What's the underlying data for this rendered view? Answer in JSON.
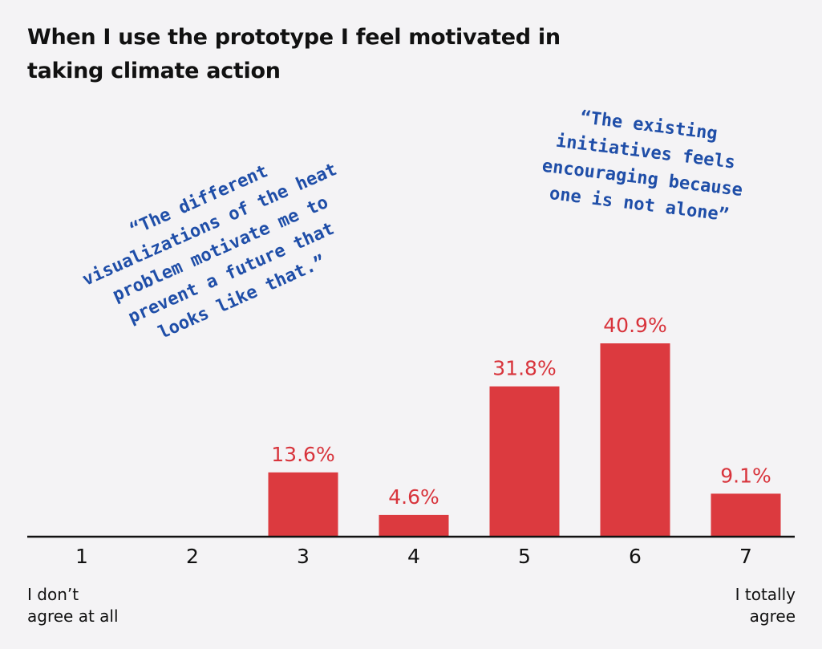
{
  "title": "When I use the prototype I feel motivated in taking climate action",
  "chart_data": {
    "type": "bar",
    "categories": [
      "1",
      "2",
      "3",
      "4",
      "5",
      "6",
      "7"
    ],
    "values": [
      0,
      0,
      13.6,
      4.6,
      31.8,
      40.9,
      9.1
    ],
    "data_labels": [
      "",
      "",
      "13.6%",
      "4.6%",
      "31.8%",
      "40.9%",
      "9.1%"
    ],
    "xlabel": "",
    "ylabel": "",
    "ylim": [
      0,
      50
    ],
    "grid": false,
    "legend": "none",
    "bar_color": "#dc3a3f",
    "label_color": "#d8343c",
    "axis_color": "#111111"
  },
  "scale_labels": {
    "left": "I don’t\nagree at all",
    "right": "I totally\nagree"
  },
  "quotes": [
    {
      "text": "“The different\nvisualizations of the heat\nproblem motivate me to\nprevent a future that\nlooks like that.”",
      "color": "#1f4ea8"
    },
    {
      "text": "“The existing\ninitiatives feels\nencouraging because\none is not alone”",
      "color": "#1f4ea8"
    }
  ]
}
